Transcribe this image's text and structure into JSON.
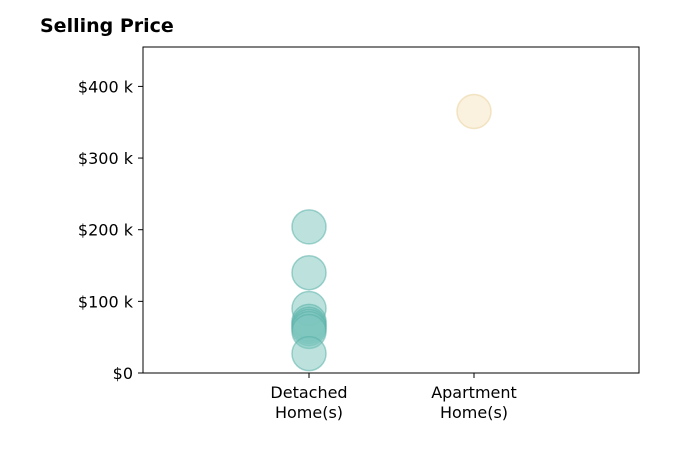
{
  "chart_data": {
    "type": "scatter",
    "title": "Selling Price",
    "xlabel": "",
    "ylabel": "",
    "categories": [
      [
        "Detached",
        "Home(s)"
      ],
      [
        "Apartment",
        "Home(s)"
      ]
    ],
    "ylim": [
      0,
      455000
    ],
    "yticks": [
      0,
      100000,
      200000,
      300000,
      400000
    ],
    "ytick_labels": [
      "$0",
      "$100 k",
      "$200 k",
      "$300 k",
      "$400 k"
    ],
    "grid": false,
    "series": [
      {
        "category_index": 0,
        "color": "#7cc5be",
        "stroke": "#5ab0a8",
        "values": [
          204000,
          140000,
          90000,
          72000,
          68000,
          65000,
          62000,
          58000,
          27000
        ]
      },
      {
        "category_index": 1,
        "color": "#f5e3be",
        "stroke": "#ead29c",
        "values": [
          365000
        ]
      }
    ]
  }
}
